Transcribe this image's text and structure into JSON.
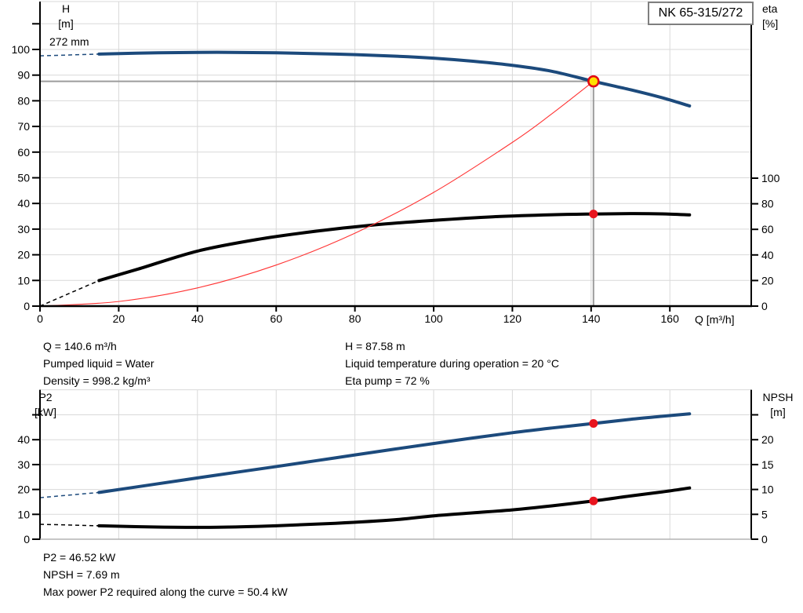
{
  "title_box": {
    "label": "NK 65-315/272"
  },
  "impeller_label": "272 mm",
  "info_top_left": [
    "Q = 140.6 m³/h",
    "Pumped liquid = Water",
    "Density = 998.2 kg/m³"
  ],
  "info_top_right": [
    "H = 87.58 m",
    "Liquid temperature during operation = 20 °C",
    "Eta pump = 72 %"
  ],
  "info_bottom": [
    "P2 = 46.52 kW",
    "NPSH = 7.69 m",
    "Max power P2 required along the curve = 50.4 kW"
  ],
  "colors": {
    "curve_blue": "#1c4a7c",
    "curve_black": "#000000",
    "system_red": "#ff3333",
    "dot_red": "#e8141e",
    "duty_yellow": "#ffe000",
    "duty_ring": "#e30613",
    "grid": "#d9d9d9",
    "crosshair": "#9c9c9c"
  },
  "chart_data": [
    {
      "type": "line",
      "title": "NK 65-315/272",
      "xlabel": "Q [m³/h]",
      "xlim": [
        0,
        180
      ],
      "x_axis": {
        "tick_values": [
          0,
          20,
          40,
          60,
          80,
          100,
          120,
          140,
          160
        ],
        "tick_labels": [
          "0",
          "20",
          "40",
          "60",
          "80",
          "100",
          "120",
          "140",
          "160"
        ],
        "grid_values": [
          20,
          40,
          60,
          80,
          100,
          120,
          140,
          160
        ]
      },
      "left_axis": {
        "label_lines": [
          "H",
          "[m]"
        ],
        "ylim": [
          0,
          118
        ],
        "tick_values": [
          0,
          10,
          20,
          30,
          40,
          50,
          60,
          70,
          80,
          90,
          100,
          110
        ],
        "tick_labels": [
          "0",
          "10",
          "20",
          "30",
          "40",
          "50",
          "60",
          "70",
          "80",
          "90",
          "100",
          ""
        ]
      },
      "right_axis": {
        "label_lines": [
          "eta",
          "[%]"
        ],
        "ylim": [
          0,
          238
        ],
        "tick_values": [
          0,
          20,
          40,
          60,
          80,
          100
        ],
        "tick_labels": [
          "0",
          "20",
          "40",
          "60",
          "80",
          "100"
        ]
      },
      "series": [
        {
          "name": "head-curve",
          "axis": "left",
          "color": "#1c4a7c",
          "width": 4,
          "dashed_lead": [
            [
              0,
              97.5
            ],
            [
              15,
              98.2
            ]
          ],
          "points": [
            [
              15,
              98.2
            ],
            [
              30,
              98.7
            ],
            [
              45,
              98.9
            ],
            [
              60,
              98.7
            ],
            [
              75,
              98.2
            ],
            [
              90,
              97.4
            ],
            [
              100,
              96.6
            ],
            [
              110,
              95.4
            ],
            [
              120,
              93.8
            ],
            [
              130,
              91.5
            ],
            [
              140.6,
              87.58
            ],
            [
              150,
              84.3
            ],
            [
              158,
              81.2
            ],
            [
              165,
              78.0
            ]
          ]
        },
        {
          "name": "efficiency-curve",
          "axis": "right",
          "color": "#000000",
          "width": 4,
          "dashed_lead": [
            [
              0,
              0
            ],
            [
              15,
              20
            ]
          ],
          "points": [
            [
              15,
              20
            ],
            [
              25,
              29
            ],
            [
              40,
              43
            ],
            [
              55,
              52
            ],
            [
              70,
              58.5
            ],
            [
              85,
              63.5
            ],
            [
              100,
              67
            ],
            [
              115,
              69.8
            ],
            [
              130,
              71.4
            ],
            [
              140.6,
              72
            ],
            [
              150,
              72.3
            ],
            [
              158,
              72.1
            ],
            [
              165,
              71.3
            ]
          ]
        },
        {
          "name": "system-curve",
          "axis": "left",
          "color": "#ff3333",
          "width": 1.1,
          "points": [
            [
              0,
              0
            ],
            [
              20,
              1.8
            ],
            [
              40,
              7.1
            ],
            [
              60,
              16.0
            ],
            [
              80,
              28.4
            ],
            [
              100,
              44.3
            ],
            [
              120,
              63.8
            ],
            [
              130,
              74.9
            ],
            [
              140.6,
              87.58
            ]
          ]
        }
      ],
      "crosshair": {
        "q": 140.6,
        "h": 87.58
      },
      "markers": [
        {
          "name": "duty-point",
          "q": 140.6,
          "v": 87.58,
          "axis": "left",
          "r": 6.5,
          "fill": "#ffe000",
          "stroke": "#e30613",
          "stroke_width": 2.5
        },
        {
          "name": "efficiency-point",
          "q": 140.6,
          "v": 72,
          "axis": "right",
          "r": 5.5,
          "fill": "#e8141e"
        }
      ]
    },
    {
      "type": "line",
      "title": "",
      "xlabel": "",
      "xlim": [
        0,
        180
      ],
      "x_axis": {
        "tick_values": [],
        "tick_labels": [],
        "grid_values": [
          20,
          40,
          60,
          80,
          100,
          120,
          140,
          160
        ]
      },
      "left_axis": {
        "label_lines": [
          "P2",
          "[kW]"
        ],
        "ylim": [
          0,
          60
        ],
        "tick_values": [
          0,
          10,
          20,
          30,
          40,
          50
        ],
        "tick_labels": [
          "0",
          "10",
          "20",
          "30",
          "40",
          ""
        ]
      },
      "right_axis": {
        "label_lines": [
          "NPSH",
          "[m]"
        ],
        "ylim": [
          0,
          30
        ],
        "tick_values": [
          0,
          5,
          10,
          15,
          20,
          25
        ],
        "tick_labels": [
          "0",
          "5",
          "10",
          "15",
          "20",
          ""
        ]
      },
      "series": [
        {
          "name": "p2-curve",
          "axis": "left",
          "color": "#1c4a7c",
          "width": 4,
          "dashed_lead": [
            [
              0,
              16.7
            ],
            [
              15,
              18.8
            ]
          ],
          "points": [
            [
              15,
              18.8
            ],
            [
              30,
              22.3
            ],
            [
              45,
              25.8
            ],
            [
              60,
              29.2
            ],
            [
              75,
              32.7
            ],
            [
              90,
              36.2
            ],
            [
              105,
              39.6
            ],
            [
              120,
              42.8
            ],
            [
              130,
              44.7
            ],
            [
              140.6,
              46.52
            ],
            [
              150,
              48.2
            ],
            [
              158,
              49.4
            ],
            [
              165,
              50.4
            ]
          ]
        },
        {
          "name": "npsh-curve",
          "axis": "right",
          "color": "#000000",
          "width": 4,
          "dashed_lead": [
            [
              0,
              3.0
            ],
            [
              15,
              2.7
            ]
          ],
          "points": [
            [
              15,
              2.7
            ],
            [
              30,
              2.45
            ],
            [
              45,
              2.4
            ],
            [
              60,
              2.7
            ],
            [
              75,
              3.2
            ],
            [
              90,
              3.9
            ],
            [
              100,
              4.7
            ],
            [
              110,
              5.3
            ],
            [
              120,
              5.9
            ],
            [
              130,
              6.7
            ],
            [
              140.6,
              7.69
            ],
            [
              150,
              8.7
            ],
            [
              158,
              9.5
            ],
            [
              165,
              10.3
            ]
          ]
        }
      ],
      "markers": [
        {
          "name": "p2-point",
          "q": 140.6,
          "v": 46.52,
          "axis": "left",
          "r": 5.5,
          "fill": "#e8141e"
        },
        {
          "name": "npsh-point",
          "q": 140.6,
          "v": 7.69,
          "axis": "right",
          "r": 5.5,
          "fill": "#e8141e"
        }
      ]
    }
  ]
}
